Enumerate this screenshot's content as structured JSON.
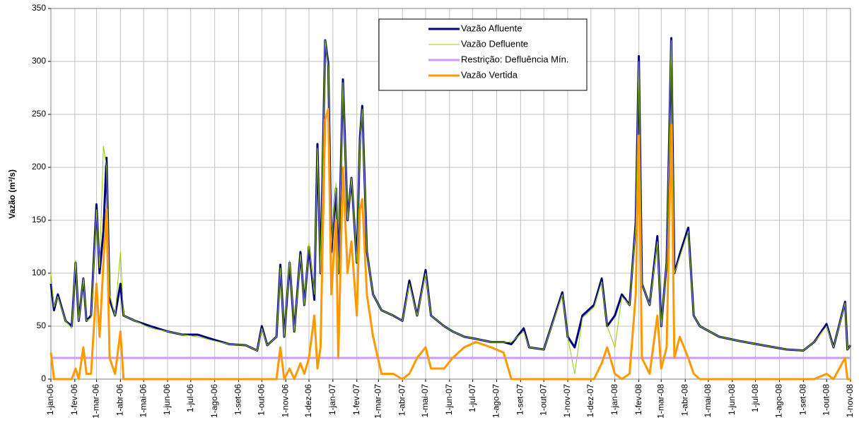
{
  "chart_data": {
    "type": "line",
    "y_label": "Vazão (m³/s)",
    "ylim": [
      0,
      350
    ],
    "yticks": [
      0,
      50,
      100,
      150,
      200,
      250,
      300,
      350
    ],
    "xlim": [
      "2006-01-01",
      "2008-11-01"
    ],
    "xticks": [
      {
        "value": "2006-01-01",
        "label": "1-jan-06"
      },
      {
        "value": "2006-02-01",
        "label": "1-fev-06"
      },
      {
        "value": "2006-03-01",
        "label": "1-mar-06"
      },
      {
        "value": "2006-04-01",
        "label": "1-abr-06"
      },
      {
        "value": "2006-05-01",
        "label": "1-mai-06"
      },
      {
        "value": "2006-06-01",
        "label": "1-jun-06"
      },
      {
        "value": "2006-07-01",
        "label": "1-jul-06"
      },
      {
        "value": "2006-08-01",
        "label": "1-ago-06"
      },
      {
        "value": "2006-09-01",
        "label": "1-set-06"
      },
      {
        "value": "2006-10-01",
        "label": "1-out-06"
      },
      {
        "value": "2006-11-01",
        "label": "1-nov-06"
      },
      {
        "value": "2006-12-01",
        "label": "1-dez-06"
      },
      {
        "value": "2007-01-01",
        "label": "1-jan-07"
      },
      {
        "value": "2007-02-01",
        "label": "1-fev-07"
      },
      {
        "value": "2007-03-01",
        "label": "1-mar-07"
      },
      {
        "value": "2007-04-01",
        "label": "1-abr-07"
      },
      {
        "value": "2007-05-01",
        "label": "1-mai-07"
      },
      {
        "value": "2007-06-01",
        "label": "1-jun-07"
      },
      {
        "value": "2007-07-01",
        "label": "1-jul-07"
      },
      {
        "value": "2007-08-01",
        "label": "1-ago-07"
      },
      {
        "value": "2007-09-01",
        "label": "1-set-07"
      },
      {
        "value": "2007-10-01",
        "label": "1-out-07"
      },
      {
        "value": "2007-11-01",
        "label": "1-nov-07"
      },
      {
        "value": "2007-12-01",
        "label": "1-dez-07"
      },
      {
        "value": "2008-01-01",
        "label": "1-jan-08"
      },
      {
        "value": "2008-02-01",
        "label": "1-fev-08"
      },
      {
        "value": "2008-03-01",
        "label": "1-mar-08"
      },
      {
        "value": "2008-04-01",
        "label": "1-abr-08"
      },
      {
        "value": "2008-05-01",
        "label": "1-mai-08"
      },
      {
        "value": "2008-06-01",
        "label": "1-jun-08"
      },
      {
        "value": "2008-07-01",
        "label": "1-jul-08"
      },
      {
        "value": "2008-08-01",
        "label": "1-ago-08"
      },
      {
        "value": "2008-09-01",
        "label": "1-set-08"
      },
      {
        "value": "2008-10-01",
        "label": "1-out-08"
      },
      {
        "value": "2008-11-01",
        "label": "1-nov-08"
      }
    ],
    "grid": true,
    "x": [
      "2006-01-01",
      "2006-01-05",
      "2006-01-10",
      "2006-01-20",
      "2006-01-28",
      "2006-02-02",
      "2006-02-06",
      "2006-02-12",
      "2006-02-16",
      "2006-02-22",
      "2006-03-01",
      "2006-03-05",
      "2006-03-10",
      "2006-03-14",
      "2006-03-18",
      "2006-03-25",
      "2006-04-01",
      "2006-04-05",
      "2006-04-20",
      "2006-05-10",
      "2006-06-01",
      "2006-06-20",
      "2006-07-10",
      "2006-08-01",
      "2006-08-20",
      "2006-09-10",
      "2006-09-25",
      "2006-10-01",
      "2006-10-08",
      "2006-10-20",
      "2006-10-25",
      "2006-10-30",
      "2006-11-06",
      "2006-11-12",
      "2006-11-20",
      "2006-11-25",
      "2006-12-01",
      "2006-12-08",
      "2006-12-12",
      "2006-12-16",
      "2006-12-22",
      "2006-12-26",
      "2006-12-30",
      "2007-01-05",
      "2007-01-08",
      "2007-01-14",
      "2007-01-20",
      "2007-01-25",
      "2007-02-01",
      "2007-02-05",
      "2007-02-08",
      "2007-02-14",
      "2007-02-22",
      "2007-03-05",
      "2007-03-20",
      "2007-04-01",
      "2007-04-10",
      "2007-04-20",
      "2007-05-01",
      "2007-05-08",
      "2007-05-25",
      "2007-06-05",
      "2007-06-20",
      "2007-07-05",
      "2007-07-25",
      "2007-08-10",
      "2007-08-20",
      "2007-09-05",
      "2007-09-12",
      "2007-10-01",
      "2007-10-25",
      "2007-11-01",
      "2007-11-10",
      "2007-11-20",
      "2007-12-05",
      "2007-12-15",
      "2007-12-22",
      "2008-01-01",
      "2008-01-10",
      "2008-01-20",
      "2008-01-28",
      "2008-02-01",
      "2008-02-05",
      "2008-02-15",
      "2008-02-25",
      "2008-03-01",
      "2008-03-08",
      "2008-03-14",
      "2008-03-18",
      "2008-03-25",
      "2008-04-05",
      "2008-04-12",
      "2008-04-20",
      "2008-05-15",
      "2008-06-10",
      "2008-07-10",
      "2008-08-10",
      "2008-09-01",
      "2008-09-15",
      "2008-10-01",
      "2008-10-10",
      "2008-10-25",
      "2008-10-28",
      "2008-11-01"
    ],
    "series": [
      {
        "name": "Vazão Afluente",
        "color": "#000080",
        "values": [
          90,
          65,
          80,
          55,
          50,
          110,
          55,
          95,
          55,
          60,
          165,
          100,
          140,
          209,
          75,
          60,
          90,
          60,
          55,
          50,
          45,
          42,
          42,
          37,
          33,
          32,
          27,
          50,
          32,
          40,
          108,
          40,
          110,
          45,
          120,
          70,
          125,
          75,
          222,
          100,
          320,
          298,
          120,
          180,
          100,
          283,
          150,
          190,
          110,
          228,
          258,
          120,
          80,
          65,
          60,
          55,
          93,
          60,
          103,
          60,
          50,
          45,
          40,
          38,
          35,
          35,
          33,
          48,
          30,
          28,
          82,
          40,
          30,
          60,
          70,
          95,
          50,
          60,
          80,
          70,
          148,
          305,
          90,
          70,
          135,
          50,
          110,
          322,
          100,
          118,
          143,
          60,
          50,
          40,
          36,
          32,
          28,
          27,
          35,
          52,
          30,
          73,
          28,
          32
        ]
      },
      {
        "name": "Vazão Defluente",
        "color": "#99cc00",
        "values": [
          100,
          68,
          78,
          55,
          48,
          112,
          55,
          95,
          55,
          58,
          160,
          105,
          220,
          200,
          80,
          60,
          120,
          60,
          55,
          48,
          45,
          42,
          40,
          36,
          33,
          32,
          27,
          48,
          32,
          40,
          105,
          40,
          112,
          45,
          118,
          70,
          128,
          80,
          218,
          100,
          320,
          295,
          125,
          185,
          100,
          280,
          150,
          190,
          110,
          225,
          255,
          120,
          80,
          65,
          60,
          55,
          90,
          60,
          100,
          60,
          50,
          45,
          40,
          38,
          35,
          35,
          35,
          45,
          30,
          28,
          80,
          40,
          5,
          58,
          68,
          92,
          50,
          30,
          78,
          70,
          145,
          300,
          90,
          70,
          130,
          50,
          110,
          320,
          100,
          115,
          140,
          60,
          50,
          40,
          36,
          32,
          28,
          27,
          35,
          50,
          30,
          72,
          28,
          32
        ]
      },
      {
        "name": "Restrição: Defluência Mín.",
        "color": "#cc99ff",
        "values": [
          20,
          20,
          20,
          20,
          20,
          20,
          20,
          20,
          20,
          20,
          20,
          20,
          20,
          20,
          20,
          20,
          20,
          20,
          20,
          20,
          20,
          20,
          20,
          20,
          20,
          20,
          20,
          20,
          20,
          20,
          20,
          20,
          20,
          20,
          20,
          20,
          20,
          20,
          20,
          20,
          20,
          20,
          20,
          20,
          20,
          20,
          20,
          20,
          20,
          20,
          20,
          20,
          20,
          20,
          20,
          20,
          20,
          20,
          20,
          20,
          20,
          20,
          20,
          20,
          20,
          20,
          20,
          20,
          20,
          20,
          20,
          20,
          20,
          20,
          20,
          20,
          20,
          20,
          20,
          20,
          20,
          20,
          20,
          20,
          20,
          20,
          20,
          20,
          20,
          20,
          20,
          20,
          20,
          20,
          20,
          20,
          20,
          20,
          20,
          20,
          20,
          20,
          20,
          20
        ]
      },
      {
        "name": "Vazão Vertida",
        "color": "#ff9900",
        "values": [
          25,
          0,
          0,
          0,
          0,
          10,
          0,
          30,
          5,
          5,
          90,
          40,
          110,
          160,
          20,
          5,
          45,
          0,
          0,
          0,
          0,
          0,
          0,
          0,
          0,
          0,
          0,
          0,
          0,
          0,
          30,
          0,
          10,
          0,
          15,
          5,
          20,
          60,
          10,
          30,
          245,
          255,
          80,
          150,
          20,
          200,
          100,
          130,
          60,
          160,
          170,
          80,
          40,
          5,
          5,
          0,
          5,
          20,
          30,
          10,
          10,
          20,
          30,
          35,
          30,
          25,
          0,
          0,
          0,
          0,
          0,
          0,
          0,
          0,
          0,
          15,
          30,
          5,
          0,
          5,
          80,
          230,
          20,
          5,
          60,
          10,
          30,
          240,
          20,
          40,
          20,
          5,
          0,
          0,
          0,
          0,
          0,
          0,
          0,
          5,
          0,
          20,
          0,
          0
        ]
      }
    ]
  }
}
